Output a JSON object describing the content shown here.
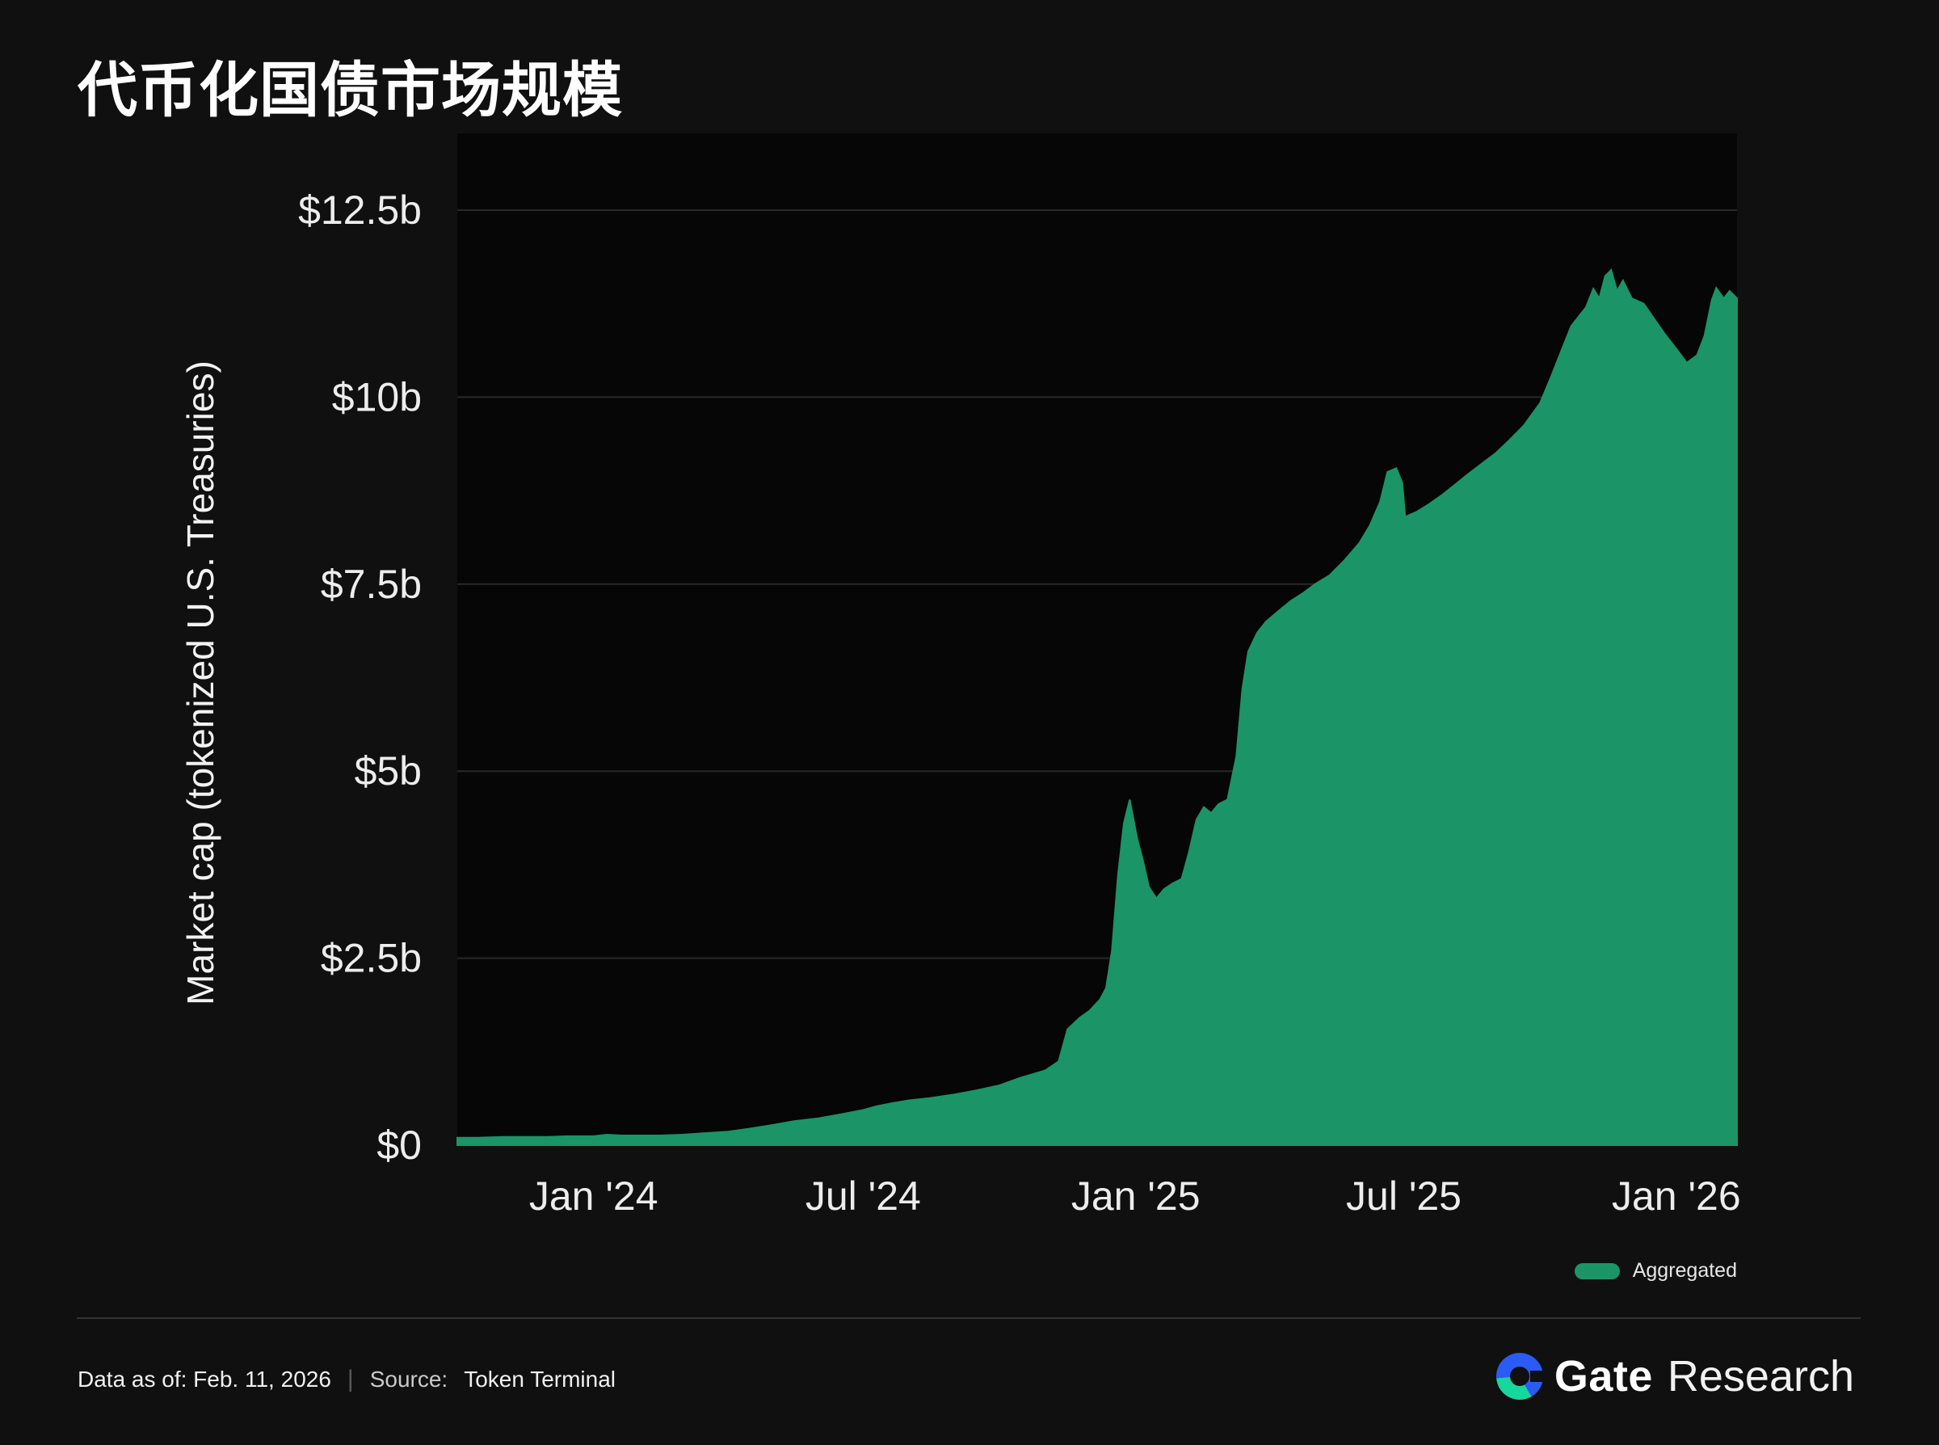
{
  "title": "代币化国债市场规模",
  "chart_data": {
    "type": "area",
    "title": "代币化国债市场规模",
    "ylabel": "Market cap (tokenized U.S. Treasuries)",
    "xlabel": "",
    "ylim": [
      0,
      12.5
    ],
    "grid": "horizontal",
    "legend_position": "bottom-right",
    "background": "#060606",
    "x_domain": [
      "2023-10-01",
      "2026-02-11"
    ],
    "yticks": [
      {
        "v": 0,
        "label": "$0"
      },
      {
        "v": 2.5,
        "label": "$2.5b"
      },
      {
        "v": 5,
        "label": "$5b"
      },
      {
        "v": 7.5,
        "label": "$7.5b"
      },
      {
        "v": 10,
        "label": "$10b"
      },
      {
        "v": 12.5,
        "label": "$12.5b"
      }
    ],
    "xticks": [
      {
        "date": "2024-01-01",
        "label": "Jan '24"
      },
      {
        "date": "2024-07-01",
        "label": "Jul '24"
      },
      {
        "date": "2025-01-01",
        "label": "Jan '25"
      },
      {
        "date": "2025-07-01",
        "label": "Jul '25"
      },
      {
        "date": "2026-01-01",
        "label": "Jan '26"
      }
    ],
    "series": [
      {
        "name": "Aggregated",
        "color": "#1b9468",
        "points": [
          [
            "2023-10-01",
            0.1
          ],
          [
            "2023-10-15",
            0.1
          ],
          [
            "2023-11-01",
            0.11
          ],
          [
            "2023-11-15",
            0.11
          ],
          [
            "2023-12-01",
            0.11
          ],
          [
            "2023-12-15",
            0.12
          ],
          [
            "2024-01-01",
            0.12
          ],
          [
            "2024-01-10",
            0.14
          ],
          [
            "2024-01-20",
            0.13
          ],
          [
            "2024-02-01",
            0.13
          ],
          [
            "2024-02-15",
            0.13
          ],
          [
            "2024-03-01",
            0.14
          ],
          [
            "2024-03-15",
            0.16
          ],
          [
            "2024-04-01",
            0.18
          ],
          [
            "2024-04-15",
            0.22
          ],
          [
            "2024-05-01",
            0.27
          ],
          [
            "2024-05-15",
            0.32
          ],
          [
            "2024-06-01",
            0.36
          ],
          [
            "2024-06-15",
            0.41
          ],
          [
            "2024-07-01",
            0.47
          ],
          [
            "2024-07-10",
            0.52
          ],
          [
            "2024-07-20",
            0.56
          ],
          [
            "2024-08-01",
            0.6
          ],
          [
            "2024-08-15",
            0.63
          ],
          [
            "2024-09-01",
            0.68
          ],
          [
            "2024-09-15",
            0.73
          ],
          [
            "2024-10-01",
            0.8
          ],
          [
            "2024-10-15",
            0.9
          ],
          [
            "2024-11-01",
            1.0
          ],
          [
            "2024-11-10",
            1.12
          ],
          [
            "2024-11-16",
            1.55
          ],
          [
            "2024-11-24",
            1.7
          ],
          [
            "2024-12-01",
            1.8
          ],
          [
            "2024-12-08",
            1.95
          ],
          [
            "2024-12-12",
            2.1
          ],
          [
            "2024-12-16",
            2.6
          ],
          [
            "2024-12-20",
            3.6
          ],
          [
            "2024-12-24",
            4.3
          ],
          [
            "2024-12-28",
            4.62
          ],
          [
            "2025-01-02",
            4.1
          ],
          [
            "2025-01-06",
            3.8
          ],
          [
            "2025-01-10",
            3.45
          ],
          [
            "2025-01-15",
            3.3
          ],
          [
            "2025-01-20",
            3.42
          ],
          [
            "2025-01-26",
            3.5
          ],
          [
            "2025-02-01",
            3.56
          ],
          [
            "2025-02-06",
            3.92
          ],
          [
            "2025-02-11",
            4.35
          ],
          [
            "2025-02-16",
            4.52
          ],
          [
            "2025-02-21",
            4.44
          ],
          [
            "2025-02-26",
            4.56
          ],
          [
            "2025-03-04",
            4.62
          ],
          [
            "2025-03-10",
            5.2
          ],
          [
            "2025-03-14",
            6.1
          ],
          [
            "2025-03-18",
            6.6
          ],
          [
            "2025-03-24",
            6.85
          ],
          [
            "2025-03-30",
            7.0
          ],
          [
            "2025-04-08",
            7.15
          ],
          [
            "2025-04-16",
            7.28
          ],
          [
            "2025-04-24",
            7.38
          ],
          [
            "2025-05-02",
            7.5
          ],
          [
            "2025-05-12",
            7.62
          ],
          [
            "2025-05-22",
            7.82
          ],
          [
            "2025-06-01",
            8.05
          ],
          [
            "2025-06-08",
            8.28
          ],
          [
            "2025-06-15",
            8.6
          ],
          [
            "2025-06-20",
            9.0
          ],
          [
            "2025-06-26",
            9.05
          ],
          [
            "2025-06-30",
            8.85
          ],
          [
            "2025-07-02",
            8.4
          ],
          [
            "2025-07-10",
            8.47
          ],
          [
            "2025-07-18",
            8.57
          ],
          [
            "2025-07-26",
            8.68
          ],
          [
            "2025-08-04",
            8.82
          ],
          [
            "2025-08-12",
            8.95
          ],
          [
            "2025-08-22",
            9.1
          ],
          [
            "2025-09-01",
            9.25
          ],
          [
            "2025-09-10",
            9.42
          ],
          [
            "2025-09-20",
            9.62
          ],
          [
            "2025-10-01",
            9.92
          ],
          [
            "2025-10-08",
            10.25
          ],
          [
            "2025-10-15",
            10.6
          ],
          [
            "2025-10-22",
            10.95
          ],
          [
            "2025-11-01",
            11.2
          ],
          [
            "2025-11-06",
            11.45
          ],
          [
            "2025-11-10",
            11.32
          ],
          [
            "2025-11-14",
            11.62
          ],
          [
            "2025-11-18",
            11.7
          ],
          [
            "2025-11-22",
            11.42
          ],
          [
            "2025-11-26",
            11.56
          ],
          [
            "2025-12-02",
            11.32
          ],
          [
            "2025-12-10",
            11.25
          ],
          [
            "2025-12-17",
            11.05
          ],
          [
            "2025-12-24",
            10.85
          ],
          [
            "2026-01-02",
            10.62
          ],
          [
            "2026-01-08",
            10.46
          ],
          [
            "2026-01-15",
            10.56
          ],
          [
            "2026-01-20",
            10.82
          ],
          [
            "2026-01-25",
            11.3
          ],
          [
            "2026-01-28",
            11.46
          ],
          [
            "2026-02-02",
            11.32
          ],
          [
            "2026-02-06",
            11.42
          ],
          [
            "2026-02-11",
            11.32
          ]
        ]
      }
    ]
  },
  "legend": {
    "label": "Aggregated",
    "color": "#1b9468"
  },
  "footer": {
    "data_as_of": "Data as of: Feb. 11, 2026",
    "separator": "|",
    "source_label": "Source:",
    "source_value": "Token Terminal"
  },
  "brand": {
    "bold": "Gate",
    "light": "Research",
    "blue": "#2b5bf7",
    "green": "#17d79c"
  }
}
